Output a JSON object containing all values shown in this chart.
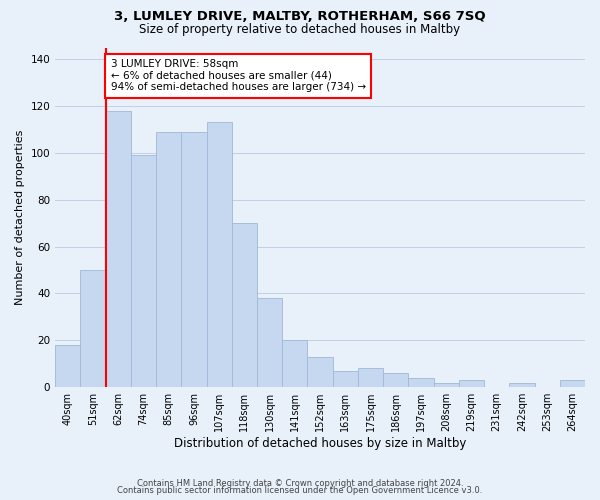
{
  "title": "3, LUMLEY DRIVE, MALTBY, ROTHERHAM, S66 7SQ",
  "subtitle": "Size of property relative to detached houses in Maltby",
  "xlabel": "Distribution of detached houses by size in Maltby",
  "ylabel": "Number of detached properties",
  "footer1": "Contains HM Land Registry data © Crown copyright and database right 2024.",
  "footer2": "Contains public sector information licensed under the Open Government Licence v3.0.",
  "bin_labels": [
    "40sqm",
    "51sqm",
    "62sqm",
    "74sqm",
    "85sqm",
    "96sqm",
    "107sqm",
    "118sqm",
    "130sqm",
    "141sqm",
    "152sqm",
    "163sqm",
    "175sqm",
    "186sqm",
    "197sqm",
    "208sqm",
    "219sqm",
    "231sqm",
    "242sqm",
    "253sqm",
    "264sqm"
  ],
  "bar_heights": [
    18,
    50,
    118,
    99,
    109,
    109,
    113,
    70,
    38,
    20,
    13,
    7,
    8,
    6,
    4,
    2,
    3,
    0,
    2,
    0,
    3
  ],
  "bar_color": "#c5d8f0",
  "bar_edge_color": "#a0b8d8",
  "vline_x_idx": 2,
  "vline_color": "red",
  "annotation_text": "3 LUMLEY DRIVE: 58sqm\n← 6% of detached houses are smaller (44)\n94% of semi-detached houses are larger (734) →",
  "annotation_box_color": "white",
  "annotation_box_edgecolor": "red",
  "ylim": [
    0,
    145
  ],
  "yticks": [
    0,
    20,
    40,
    60,
    80,
    100,
    120,
    140
  ],
  "grid_color": "#c0d0e8",
  "background_color": "#e8f0fa",
  "title_fontsize": 9.5,
  "subtitle_fontsize": 8.5,
  "ylabel_fontsize": 8,
  "xlabel_fontsize": 8.5,
  "tick_fontsize": 7,
  "annot_fontsize": 7.5,
  "footer_fontsize": 6
}
